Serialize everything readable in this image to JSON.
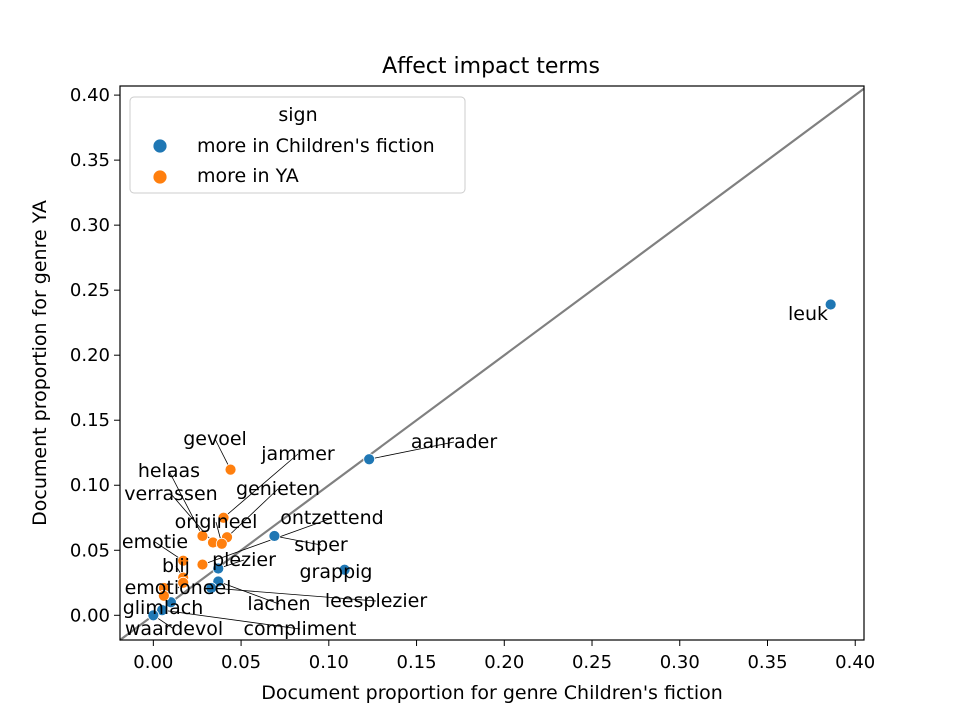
{
  "chart_data": {
    "type": "scatter",
    "title": "Affect impact terms",
    "xlabel": "Document proportion for genre Children's fiction",
    "ylabel": "Document proportion for genre YA",
    "xlim": [
      -0.019,
      0.405
    ],
    "ylim": [
      -0.019,
      0.407
    ],
    "xticks": [
      "0.00",
      "0.05",
      "0.10",
      "0.15",
      "0.20",
      "0.25",
      "0.30",
      "0.35",
      "0.40"
    ],
    "yticks": [
      "0.00",
      "0.05",
      "0.10",
      "0.15",
      "0.20",
      "0.25",
      "0.30",
      "0.35",
      "0.40"
    ],
    "grid": false,
    "diagonal_line": true,
    "legend": {
      "title": "sign",
      "placement": "upper-left",
      "entries": [
        {
          "label": "more in Children's fiction",
          "color": "#1f77b4"
        },
        {
          "label": "more in YA",
          "color": "#ff7f0e"
        }
      ]
    },
    "series": [
      {
        "name": "more in Children's fiction",
        "color": "#1f77b4",
        "points": [
          {
            "label": "leuk",
            "x": 0.386,
            "y": 0.239
          },
          {
            "label": "aanrader",
            "x": 0.123,
            "y": 0.12
          },
          {
            "label": "super",
            "x": 0.069,
            "y": 0.061
          },
          {
            "label": "grappig",
            "x": 0.109,
            "y": 0.035
          },
          {
            "label": "plezier",
            "x": 0.037,
            "y": 0.036
          },
          {
            "label": "lachen",
            "x": 0.037,
            "y": 0.026
          },
          {
            "label": "leesplezier",
            "x": 0.033,
            "y": 0.021
          },
          {
            "label": "glimlach",
            "x": 0.01,
            "y": 0.01
          },
          {
            "label": "compliment",
            "x": 0.005,
            "y": 0.004
          },
          {
            "label": "waardevol",
            "x": 0.0,
            "y": 0.0
          }
        ]
      },
      {
        "name": "more in YA",
        "color": "#ff7f0e",
        "points": [
          {
            "label": "gevoel",
            "x": 0.044,
            "y": 0.112
          },
          {
            "label": "jammer",
            "x": 0.04,
            "y": 0.075
          },
          {
            "label": "genieten",
            "x": 0.042,
            "y": 0.06
          },
          {
            "label": "helaas",
            "x": 0.028,
            "y": 0.061
          },
          {
            "label": "verrassen",
            "x": 0.034,
            "y": 0.056
          },
          {
            "label": "origineel",
            "x": 0.039,
            "y": 0.055
          },
          {
            "label": "ontzettend",
            "x": 0.028,
            "y": 0.039
          },
          {
            "label": "emotie",
            "x": 0.017,
            "y": 0.042
          },
          {
            "label": "blij",
            "x": 0.017,
            "y": 0.029
          },
          {
            "label": "emotioneel",
            "x": 0.017,
            "y": 0.025
          },
          {
            "label": "",
            "x": 0.006,
            "y": 0.021
          },
          {
            "label": "",
            "x": 0.006,
            "y": 0.015
          }
        ]
      }
    ]
  }
}
